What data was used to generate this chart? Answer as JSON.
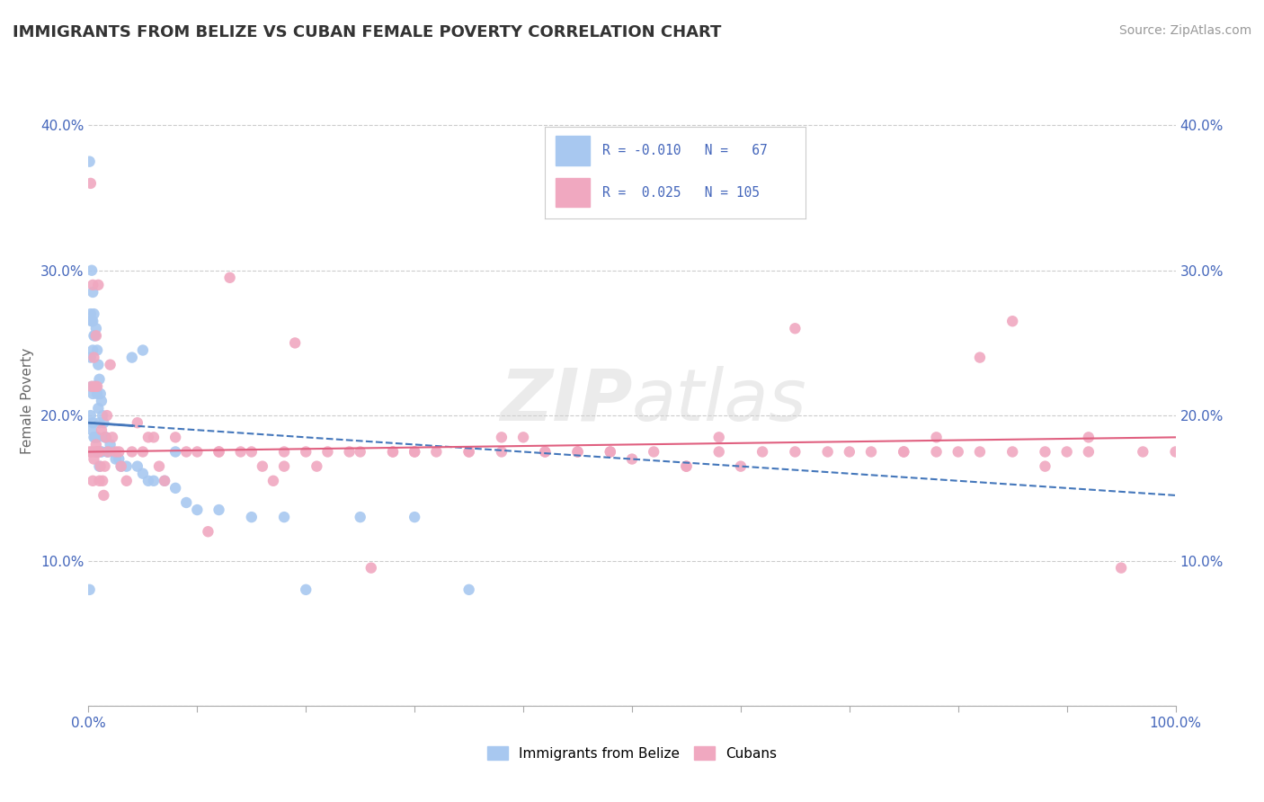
{
  "title": "IMMIGRANTS FROM BELIZE VS CUBAN FEMALE POVERTY CORRELATION CHART",
  "source": "Source: ZipAtlas.com",
  "ylabel": "Female Poverty",
  "xlim": [
    0.0,
    1.0
  ],
  "ylim": [
    0.0,
    0.42
  ],
  "xticks": [
    0.0,
    0.1,
    0.2,
    0.3,
    0.4,
    0.5,
    0.6,
    0.7,
    0.8,
    0.9,
    1.0
  ],
  "xtick_labels": [
    "0.0%",
    "",
    "",
    "",
    "",
    "",
    "",
    "",
    "",
    "",
    "100.0%"
  ],
  "yticks": [
    0.0,
    0.1,
    0.2,
    0.3,
    0.4
  ],
  "ytick_labels": [
    "",
    "10.0%",
    "20.0%",
    "30.0%",
    "40.0%"
  ],
  "belize_R": -0.01,
  "belize_N": 67,
  "cuban_R": 0.025,
  "cuban_N": 105,
  "belize_color": "#a8c8f0",
  "cuban_color": "#f0a8c0",
  "belize_line_color": "#4477bb",
  "cuban_line_color": "#e06080",
  "belize_x": [
    0.001,
    0.001,
    0.002,
    0.002,
    0.002,
    0.003,
    0.003,
    0.003,
    0.003,
    0.004,
    0.004,
    0.004,
    0.004,
    0.004,
    0.005,
    0.005,
    0.005,
    0.005,
    0.006,
    0.006,
    0.006,
    0.007,
    0.007,
    0.007,
    0.008,
    0.008,
    0.008,
    0.009,
    0.009,
    0.009,
    0.01,
    0.01,
    0.01,
    0.011,
    0.011,
    0.012,
    0.012,
    0.013,
    0.014,
    0.015,
    0.016,
    0.017,
    0.018,
    0.02,
    0.022,
    0.025,
    0.028,
    0.03,
    0.035,
    0.04,
    0.045,
    0.05,
    0.055,
    0.06,
    0.07,
    0.08,
    0.09,
    0.1,
    0.12,
    0.15,
    0.18,
    0.2,
    0.25,
    0.3,
    0.35,
    0.05,
    0.08
  ],
  "belize_y": [
    0.375,
    0.08,
    0.27,
    0.24,
    0.2,
    0.3,
    0.265,
    0.22,
    0.19,
    0.285,
    0.265,
    0.245,
    0.215,
    0.195,
    0.27,
    0.255,
    0.22,
    0.185,
    0.255,
    0.22,
    0.185,
    0.26,
    0.22,
    0.185,
    0.245,
    0.215,
    0.185,
    0.235,
    0.205,
    0.175,
    0.225,
    0.195,
    0.165,
    0.215,
    0.175,
    0.21,
    0.175,
    0.2,
    0.195,
    0.185,
    0.185,
    0.175,
    0.175,
    0.18,
    0.175,
    0.17,
    0.17,
    0.165,
    0.165,
    0.24,
    0.165,
    0.16,
    0.155,
    0.155,
    0.155,
    0.15,
    0.14,
    0.135,
    0.135,
    0.13,
    0.13,
    0.08,
    0.13,
    0.13,
    0.08,
    0.245,
    0.175
  ],
  "cuban_x": [
    0.001,
    0.002,
    0.003,
    0.003,
    0.004,
    0.004,
    0.005,
    0.005,
    0.006,
    0.006,
    0.007,
    0.007,
    0.008,
    0.008,
    0.009,
    0.009,
    0.01,
    0.01,
    0.011,
    0.012,
    0.013,
    0.014,
    0.015,
    0.016,
    0.017,
    0.018,
    0.02,
    0.022,
    0.025,
    0.028,
    0.03,
    0.035,
    0.04,
    0.045,
    0.05,
    0.055,
    0.06,
    0.065,
    0.07,
    0.08,
    0.09,
    0.1,
    0.11,
    0.12,
    0.13,
    0.14,
    0.15,
    0.16,
    0.17,
    0.18,
    0.19,
    0.2,
    0.21,
    0.22,
    0.24,
    0.26,
    0.28,
    0.3,
    0.32,
    0.35,
    0.38,
    0.4,
    0.42,
    0.45,
    0.48,
    0.5,
    0.55,
    0.58,
    0.6,
    0.65,
    0.7,
    0.75,
    0.78,
    0.8,
    0.82,
    0.85,
    0.88,
    0.9,
    0.92,
    0.95,
    0.97,
    1.0,
    0.12,
    0.18,
    0.25,
    0.3,
    0.35,
    0.42,
    0.55,
    0.65,
    0.75,
    0.85,
    0.92,
    0.78,
    0.88,
    0.62,
    0.45,
    0.52,
    0.68,
    0.82,
    0.72,
    0.58,
    0.48,
    0.38,
    0.28
  ],
  "cuban_y": [
    0.175,
    0.36,
    0.22,
    0.175,
    0.29,
    0.155,
    0.17,
    0.24,
    0.22,
    0.175,
    0.255,
    0.18,
    0.22,
    0.175,
    0.29,
    0.175,
    0.175,
    0.155,
    0.165,
    0.19,
    0.155,
    0.145,
    0.165,
    0.185,
    0.2,
    0.175,
    0.235,
    0.185,
    0.175,
    0.175,
    0.165,
    0.155,
    0.175,
    0.195,
    0.175,
    0.185,
    0.185,
    0.165,
    0.155,
    0.185,
    0.175,
    0.175,
    0.12,
    0.175,
    0.295,
    0.175,
    0.175,
    0.165,
    0.155,
    0.165,
    0.25,
    0.175,
    0.165,
    0.175,
    0.175,
    0.095,
    0.175,
    0.175,
    0.175,
    0.175,
    0.185,
    0.185,
    0.175,
    0.175,
    0.175,
    0.17,
    0.165,
    0.185,
    0.165,
    0.26,
    0.175,
    0.175,
    0.185,
    0.175,
    0.24,
    0.265,
    0.165,
    0.175,
    0.185,
    0.095,
    0.175,
    0.175,
    0.175,
    0.175,
    0.175,
    0.175,
    0.175,
    0.175,
    0.165,
    0.175,
    0.175,
    0.175,
    0.175,
    0.175,
    0.175,
    0.175,
    0.175,
    0.175,
    0.175,
    0.175,
    0.175,
    0.175,
    0.175,
    0.175,
    0.175
  ]
}
